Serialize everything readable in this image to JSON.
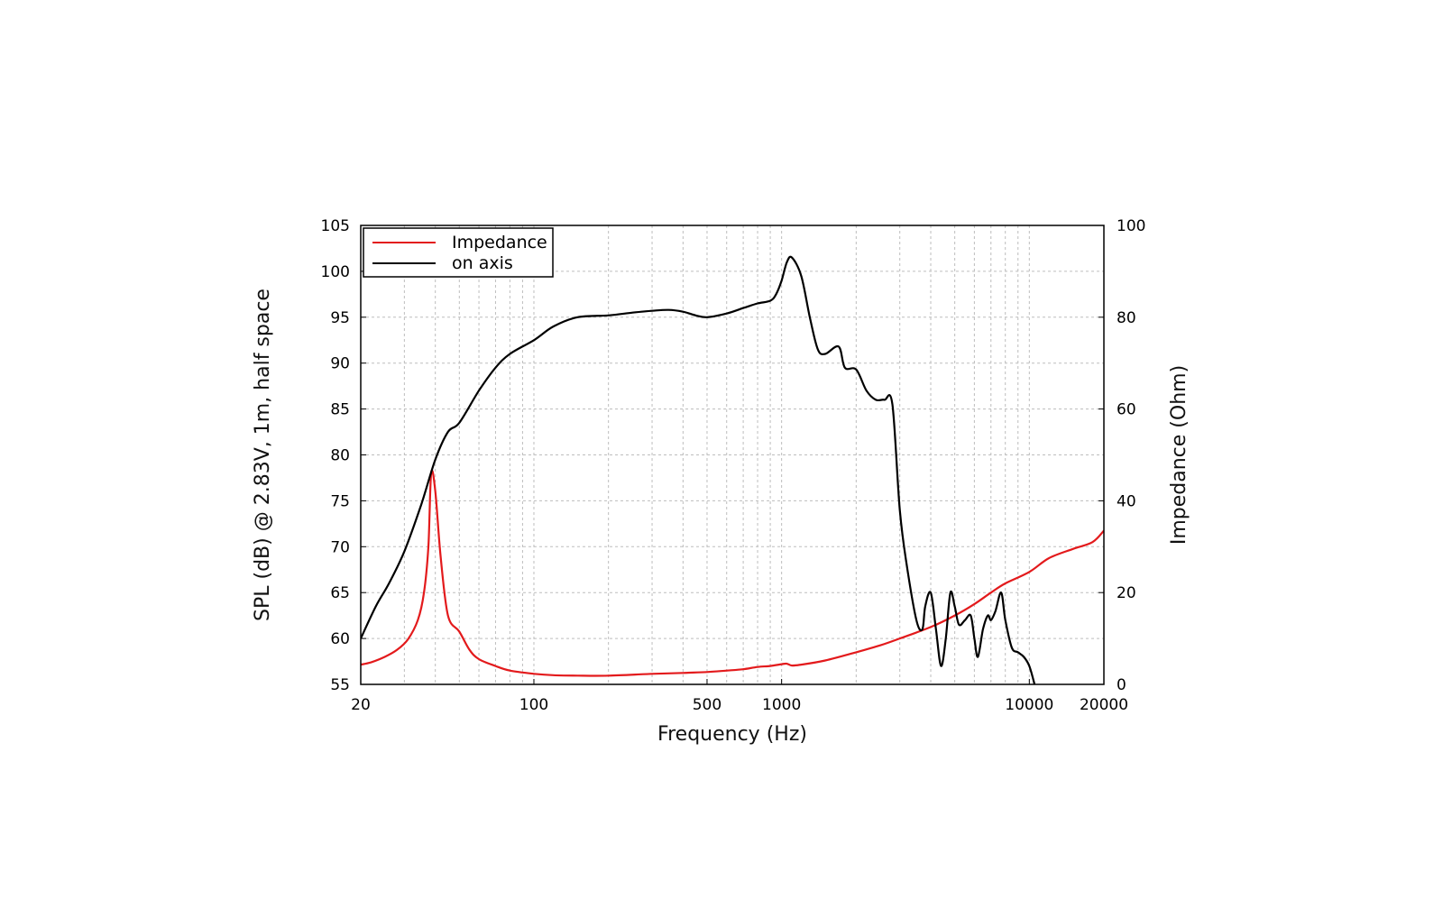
{
  "chart_data": {
    "type": "line",
    "x_scale": "log",
    "xlabel": "Frequency (Hz)",
    "ylabel": "SPL (dB) @ 2.83V, 1m, half space",
    "y2label": "Impedance (Ohm)",
    "xlim": [
      20,
      20000
    ],
    "ylim": [
      55,
      105
    ],
    "y2lim": [
      0,
      100
    ],
    "x_ticks": [
      20,
      100,
      500,
      1000,
      10000,
      20000
    ],
    "y_ticks": [
      55,
      60,
      65,
      70,
      75,
      80,
      85,
      90,
      95,
      100,
      105
    ],
    "y2_ticks": [
      0,
      20,
      40,
      60,
      80,
      100
    ],
    "grid": true,
    "legend_position": "top-left",
    "series": [
      {
        "name": "Impedance",
        "axis": "right",
        "color": "#e31a1c",
        "x": [
          20,
          22,
          25,
          28,
          31,
          34,
          36,
          37.5,
          38.5,
          40,
          42,
          45,
          50,
          55,
          60,
          70,
          80,
          100,
          120,
          150,
          200,
          300,
          400,
          500,
          600,
          700,
          800,
          900,
          1000,
          1050,
          1100,
          1200,
          1500,
          2000,
          2500,
          3000,
          4000,
          5000,
          6000,
          7000,
          8000,
          10000,
          12000,
          15000,
          18000,
          20000
        ],
        "y": [
          4.3,
          4.8,
          6.0,
          7.5,
          9.8,
          14.0,
          20.0,
          30.0,
          46.0,
          42.0,
          28.0,
          15.0,
          11.5,
          7.5,
          5.5,
          4.0,
          3.0,
          2.3,
          2.0,
          1.9,
          1.9,
          2.3,
          2.5,
          2.7,
          3.0,
          3.3,
          3.8,
          4.0,
          4.4,
          4.5,
          4.1,
          4.3,
          5.2,
          7.0,
          8.5,
          10.0,
          12.5,
          15.0,
          17.5,
          20.0,
          22.0,
          24.5,
          27.5,
          29.5,
          31.0,
          33.5
        ]
      },
      {
        "name": "on axis",
        "axis": "left",
        "color": "#000000",
        "x": [
          20,
          23,
          26,
          30,
          35,
          40,
          45,
          50,
          60,
          70,
          80,
          100,
          120,
          150,
          200,
          250,
          300,
          350,
          400,
          450,
          500,
          600,
          700,
          800,
          900,
          950,
          1000,
          1050,
          1100,
          1200,
          1300,
          1400,
          1500,
          1700,
          1800,
          2000,
          2200,
          2400,
          2600,
          2800,
          3000,
          3200,
          3500,
          3700,
          3800,
          4000,
          4200,
          4400,
          4600,
          4800,
          5000,
          5200,
          5500,
          5800,
          6000,
          6200,
          6500,
          6800,
          7000,
          7300,
          7700,
          8000,
          8500,
          9000,
          9500,
          10000,
          10500
        ],
        "y": [
          60.0,
          63.5,
          66.0,
          69.5,
          74.5,
          79.5,
          82.5,
          83.5,
          87.0,
          89.5,
          91.0,
          92.5,
          94.0,
          95.0,
          95.2,
          95.5,
          95.7,
          95.8,
          95.6,
          95.2,
          95.0,
          95.4,
          96.0,
          96.5,
          96.8,
          97.5,
          99.0,
          101.0,
          101.5,
          99.5,
          95.0,
          91.5,
          91.0,
          91.8,
          89.5,
          89.3,
          87.0,
          86.0,
          86.0,
          85.5,
          74.0,
          68.0,
          62.0,
          61.0,
          63.5,
          65.0,
          61.0,
          57.0,
          60.0,
          65.0,
          63.5,
          61.5,
          62.0,
          62.5,
          60.0,
          58.0,
          61.0,
          62.5,
          62.0,
          63.0,
          65.0,
          62.0,
          59.0,
          58.5,
          58.0,
          57.0,
          55.0
        ]
      }
    ]
  }
}
